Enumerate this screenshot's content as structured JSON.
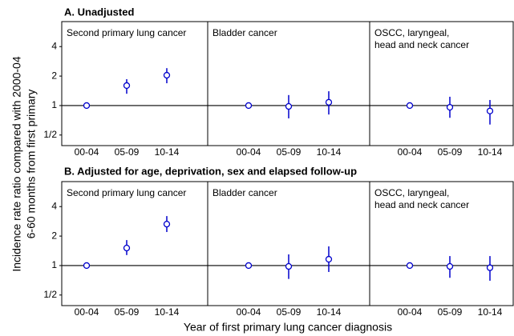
{
  "row_titles": [
    "A. Unadjusted",
    "B. Adjusted for age, deprivation, sex and elapsed follow-up"
  ],
  "ylabel": [
    "Incidence rate ratio compared with 2000-04",
    "6-60 months from first primary"
  ],
  "xlabel": "Year of first primary lung cancer diagnosis",
  "chart_data": [
    {
      "type": "pointrange",
      "title": [
        "Second primary lung cancer"
      ],
      "categories": [
        "00-04",
        "05-09",
        "10-14"
      ],
      "values": [
        1,
        1.6,
        2.04
      ],
      "lower": [
        null,
        1.32,
        1.69
      ],
      "upper": [
        null,
        1.86,
        2.41
      ],
      "color": "#0000cc",
      "yscale": "log",
      "ylim": [
        0.39,
        7.2
      ],
      "hline": 1,
      "yticks": [
        {
          "value": 0.5,
          "label": "1/2"
        },
        1,
        2,
        4
      ]
    },
    {
      "type": "pointrange",
      "title": [
        "Bladder cancer"
      ],
      "categories": [
        "00-04",
        "05-09",
        "10-14"
      ],
      "values": [
        1,
        0.98,
        1.08
      ],
      "lower": [
        null,
        0.74,
        0.81
      ],
      "upper": [
        null,
        1.28,
        1.4
      ],
      "color": "#0000cc",
      "yscale": "log",
      "ylim": [
        0.39,
        7.2
      ],
      "hline": 1
    },
    {
      "type": "pointrange",
      "title": [
        "OSCC, laryngeal,",
        "head and neck cancer"
      ],
      "categories": [
        "00-04",
        "05-09",
        "10-14"
      ],
      "values": [
        1,
        0.96,
        0.88
      ],
      "lower": [
        null,
        0.75,
        0.64
      ],
      "upper": [
        null,
        1.23,
        1.14
      ],
      "color": "#0000cc",
      "yscale": "log",
      "ylim": [
        0.39,
        7.2
      ],
      "hline": 1
    },
    {
      "type": "pointrange",
      "title": [
        "Second primary lung cancer"
      ],
      "categories": [
        "00-04",
        "05-09",
        "10-14"
      ],
      "values": [
        1,
        1.51,
        2.65
      ],
      "lower": [
        null,
        1.28,
        2.2
      ],
      "upper": [
        null,
        1.82,
        3.2
      ],
      "color": "#0000cc",
      "yscale": "log",
      "ylim": [
        0.39,
        7.2
      ],
      "hline": 1,
      "yticks": [
        {
          "value": 0.5,
          "label": "1/2"
        },
        1,
        2,
        4
      ]
    },
    {
      "type": "pointrange",
      "title": [
        "Bladder cancer"
      ],
      "categories": [
        "00-04",
        "05-09",
        "10-14"
      ],
      "values": [
        1,
        0.98,
        1.16
      ],
      "lower": [
        null,
        0.73,
        0.86
      ],
      "upper": [
        null,
        1.3,
        1.57
      ],
      "color": "#0000cc",
      "yscale": "log",
      "ylim": [
        0.39,
        7.2
      ],
      "hline": 1
    },
    {
      "type": "pointrange",
      "title": [
        "OSCC, laryngeal,",
        "head and neck cancer"
      ],
      "categories": [
        "00-04",
        "05-09",
        "10-14"
      ],
      "values": [
        1,
        0.98,
        0.95
      ],
      "lower": [
        null,
        0.75,
        0.7
      ],
      "upper": [
        null,
        1.25,
        1.25
      ],
      "color": "#0000cc",
      "yscale": "log",
      "ylim": [
        0.39,
        7.2
      ],
      "hline": 1
    }
  ]
}
